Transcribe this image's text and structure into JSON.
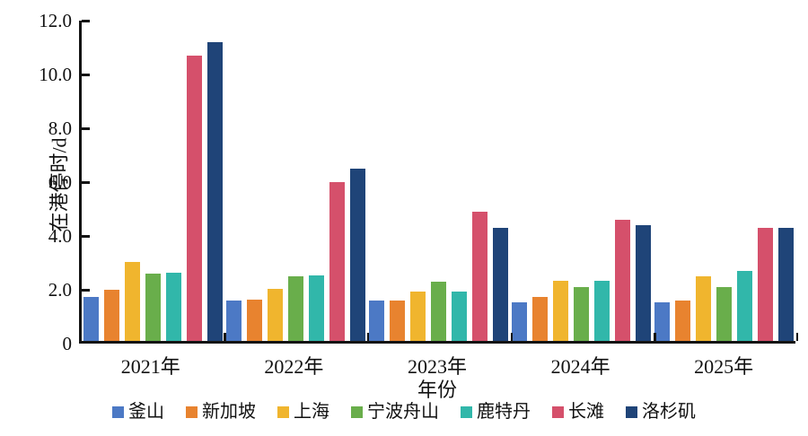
{
  "chart_data": {
    "type": "bar",
    "title": "",
    "xlabel": "年份",
    "ylabel": "在港停时/d",
    "ylim": [
      0,
      12
    ],
    "ytick_step": 2,
    "yticks": [
      {
        "value": 0,
        "label": "0"
      },
      {
        "value": 2,
        "label": "2.0"
      },
      {
        "value": 4,
        "label": "4.0"
      },
      {
        "value": 6,
        "label": "6.0"
      },
      {
        "value": 8,
        "label": "8.0"
      },
      {
        "value": 10,
        "label": "10.0"
      },
      {
        "value": 12,
        "label": "12.0"
      }
    ],
    "categories": [
      "2021年",
      "2022年",
      "2023年",
      "2024年",
      "2025年"
    ],
    "grid": false,
    "legend_position": "bottom",
    "series": [
      {
        "name": "釜山",
        "color": "#4C79C5",
        "values": [
          1.65,
          1.5,
          1.5,
          1.45,
          1.45
        ]
      },
      {
        "name": "新加坡",
        "color": "#E8832F",
        "values": [
          1.9,
          1.55,
          1.5,
          1.65,
          1.5
        ]
      },
      {
        "name": "上海",
        "color": "#F0B52E",
        "values": [
          2.95,
          1.95,
          1.85,
          2.25,
          2.4
        ]
      },
      {
        "name": "宁波舟山",
        "color": "#69AE4B",
        "values": [
          2.5,
          2.4,
          2.2,
          2.0,
          2.0
        ]
      },
      {
        "name": "鹿特丹",
        "color": "#31B7AA",
        "values": [
          2.55,
          2.45,
          1.85,
          2.25,
          2.6
        ]
      },
      {
        "name": "长滩",
        "color": "#D5506B",
        "values": [
          10.6,
          5.9,
          4.8,
          4.5,
          4.2
        ]
      },
      {
        "name": "洛杉矶",
        "color": "#1F4478",
        "values": [
          11.1,
          6.4,
          4.2,
          4.3,
          4.2
        ]
      }
    ]
  }
}
